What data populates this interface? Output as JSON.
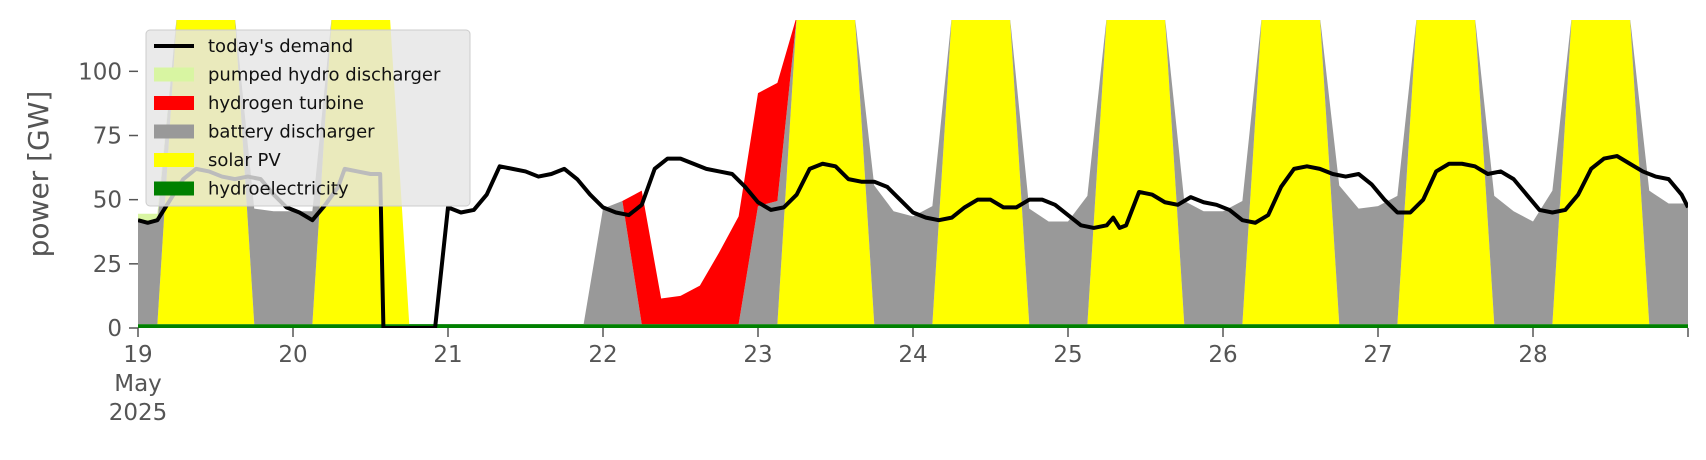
{
  "chart_data": {
    "type": "area",
    "ylabel": "power [GW]",
    "ylim": [
      0,
      120
    ],
    "xlim": [
      "2025-05-19T00:00",
      "2025-05-29T00:00"
    ],
    "yticks": [
      0,
      25,
      50,
      75,
      100
    ],
    "xticks": [
      {
        "t": "2025-05-19T00:00",
        "lines": [
          "19",
          "May",
          "2025"
        ]
      },
      {
        "t": "2025-05-20T00:00",
        "lines": [
          "20"
        ]
      },
      {
        "t": "2025-05-21T00:00",
        "lines": [
          "21"
        ]
      },
      {
        "t": "2025-05-22T00:00",
        "lines": [
          "22"
        ]
      },
      {
        "t": "2025-05-23T00:00",
        "lines": [
          "23"
        ]
      },
      {
        "t": "2025-05-24T00:00",
        "lines": [
          "24"
        ]
      },
      {
        "t": "2025-05-25T00:00",
        "lines": [
          "25"
        ]
      },
      {
        "t": "2025-05-26T00:00",
        "lines": [
          "26"
        ]
      },
      {
        "t": "2025-05-27T00:00",
        "lines": [
          "27"
        ]
      },
      {
        "t": "2025-05-28T00:00",
        "lines": [
          "28"
        ]
      }
    ],
    "grid": false,
    "legend_position": "top-left",
    "time_step_hours": 3,
    "start": "2025-05-19T00:00",
    "stacked_series": [
      {
        "name": "hydroelectricity",
        "color": "#008000",
        "values": [
          1.5,
          1.5,
          1.5,
          1.5,
          1.5,
          1.5,
          1.5,
          1.5,
          1.5,
          1.5,
          1.5,
          1.5,
          1.5,
          1.5,
          1.5,
          1.5,
          1.5,
          1.5,
          1.5,
          1.5,
          1.5,
          1.5,
          1.5,
          1.5,
          1.5,
          1.5,
          1.5,
          1.5,
          1.5,
          1.5,
          1.5,
          1.5,
          1.5,
          1.5,
          1.5,
          1.5,
          1.5,
          1.5,
          1.5,
          1.5,
          1.5,
          1.5,
          1.5,
          1.5,
          1.5,
          1.5,
          1.5,
          1.5,
          1.5,
          1.5,
          1.5,
          1.5,
          1.5,
          1.5,
          1.5,
          1.5,
          1.5,
          1.5,
          1.5,
          1.5,
          1.5,
          1.5,
          1.5,
          1.5,
          1.5,
          1.5,
          1.5,
          1.5,
          1.5,
          1.5,
          1.5,
          1.5,
          1.5,
          1.5,
          1.5,
          1.5,
          1.5,
          1.5,
          1.5,
          1.5,
          1.5
        ]
      },
      {
        "name": "solar PV",
        "color": "#ffff00",
        "values": [
          0,
          0,
          120,
          120,
          120,
          120,
          0,
          0,
          0,
          0,
          120,
          120,
          120,
          120,
          0,
          0,
          0,
          0,
          0,
          0,
          0,
          0,
          0,
          0,
          0,
          0,
          0,
          0,
          0,
          0,
          0,
          0,
          0,
          0,
          120,
          120,
          120,
          120,
          0,
          0,
          0,
          0,
          120,
          120,
          120,
          120,
          0,
          0,
          0,
          0,
          120,
          120,
          120,
          120,
          0,
          0,
          0,
          0,
          120,
          120,
          120,
          120,
          0,
          0,
          0,
          0,
          120,
          120,
          120,
          120,
          0,
          0,
          0,
          0,
          120,
          120,
          120,
          120,
          0,
          0,
          0
        ]
      },
      {
        "name": "battery discharger",
        "color": "#999999",
        "values": [
          40,
          40,
          0,
          0,
          0,
          0,
          45,
          44,
          44,
          44,
          0,
          0,
          0,
          0,
          0,
          0,
          0,
          0,
          0,
          0,
          0,
          0,
          0,
          0,
          45,
          48,
          0,
          0,
          0,
          0,
          0,
          0,
          46,
          48,
          0,
          0,
          0,
          0,
          54,
          44,
          42,
          46,
          0,
          0,
          0,
          0,
          45,
          40,
          40,
          50,
          0,
          0,
          0,
          0,
          48,
          44,
          44,
          48,
          0,
          0,
          0,
          0,
          54,
          45,
          46,
          50,
          0,
          0,
          0,
          0,
          50,
          44,
          40,
          52,
          0,
          0,
          0,
          0,
          52,
          47,
          47
        ]
      },
      {
        "name": "hydrogen turbine",
        "color": "#ff0000",
        "values": [
          0,
          0,
          0,
          0,
          0,
          0,
          0,
          0,
          0,
          0,
          0,
          0,
          0,
          0,
          0,
          0,
          0,
          0,
          0,
          0,
          0,
          0,
          0,
          0,
          0,
          0,
          52,
          10,
          11,
          15,
          28,
          42,
          44,
          46,
          0,
          0,
          0,
          0,
          0,
          0,
          0,
          0,
          0,
          0,
          0,
          0,
          0,
          0,
          0,
          0,
          0,
          0,
          0,
          0,
          0,
          0,
          0,
          0,
          0,
          0,
          0,
          0,
          0,
          0,
          0,
          0,
          0,
          0,
          0,
          0,
          0,
          0,
          0,
          0,
          0,
          0,
          0,
          0,
          0,
          0,
          0
        ]
      },
      {
        "name": "pumped hydro discharger",
        "color": "#d8f5a2",
        "values": [
          3,
          3,
          0,
          0,
          0,
          0,
          0,
          0,
          0,
          0,
          0,
          0,
          0,
          0,
          0,
          0,
          0,
          0,
          0,
          0,
          0,
          0,
          0,
          0,
          0,
          0,
          0,
          0,
          0,
          0,
          0,
          0,
          0,
          0,
          0,
          0,
          0,
          0,
          0,
          0,
          0,
          0,
          0,
          0,
          0,
          0,
          0,
          0,
          0,
          0,
          0,
          0,
          0,
          0,
          0,
          0,
          0,
          0,
          0,
          0,
          0,
          0,
          0,
          0,
          0,
          0,
          0,
          0,
          0,
          0,
          0,
          0,
          0,
          0,
          0,
          0,
          0,
          0,
          0,
          0,
          0
        ]
      }
    ],
    "line_series": {
      "name": "today's demand",
      "color": "#000000",
      "points": [
        [
          "2025-05-19T00:00",
          42
        ],
        [
          "2025-05-19T01:30",
          41
        ],
        [
          "2025-05-19T03:00",
          42
        ],
        [
          "2025-05-19T05:00",
          50
        ],
        [
          "2025-05-19T07:00",
          58
        ],
        [
          "2025-05-19T09:00",
          62
        ],
        [
          "2025-05-19T11:00",
          61
        ],
        [
          "2025-05-19T13:00",
          59
        ],
        [
          "2025-05-19T15:00",
          58
        ],
        [
          "2025-05-19T17:00",
          59
        ],
        [
          "2025-05-19T19:00",
          58
        ],
        [
          "2025-05-19T21:00",
          52
        ],
        [
          "2025-05-19T23:00",
          47
        ],
        [
          "2025-05-20T01:00",
          45
        ],
        [
          "2025-05-20T03:00",
          42
        ],
        [
          "2025-05-20T05:00",
          48
        ],
        [
          "2025-05-20T07:00",
          55
        ],
        [
          "2025-05-20T08:00",
          62
        ],
        [
          "2025-05-20T10:00",
          61
        ],
        [
          "2025-05-20T12:00",
          60
        ],
        [
          "2025-05-20T13:30",
          60
        ],
        [
          "2025-05-20T14:00",
          0
        ],
        [
          "2025-05-20T22:00",
          0
        ],
        [
          "2025-05-21T00:00",
          47
        ],
        [
          "2025-05-21T02:00",
          45
        ],
        [
          "2025-05-21T04:00",
          46
        ],
        [
          "2025-05-21T06:00",
          52
        ],
        [
          "2025-05-21T08:00",
          63
        ],
        [
          "2025-05-21T10:00",
          62
        ],
        [
          "2025-05-21T12:00",
          61
        ],
        [
          "2025-05-21T14:00",
          59
        ],
        [
          "2025-05-21T16:00",
          60
        ],
        [
          "2025-05-21T18:00",
          62
        ],
        [
          "2025-05-21T20:00",
          58
        ],
        [
          "2025-05-21T22:00",
          52
        ],
        [
          "2025-05-22T00:00",
          47
        ],
        [
          "2025-05-22T02:00",
          45
        ],
        [
          "2025-05-22T04:00",
          44
        ],
        [
          "2025-05-22T06:00",
          48
        ],
        [
          "2025-05-22T08:00",
          62
        ],
        [
          "2025-05-22T10:00",
          66
        ],
        [
          "2025-05-22T12:00",
          66
        ],
        [
          "2025-05-22T14:00",
          64
        ],
        [
          "2025-05-22T16:00",
          62
        ],
        [
          "2025-05-22T18:00",
          61
        ],
        [
          "2025-05-22T20:00",
          60
        ],
        [
          "2025-05-22T22:00",
          55
        ],
        [
          "2025-05-23T00:00",
          49
        ],
        [
          "2025-05-23T02:00",
          46
        ],
        [
          "2025-05-23T04:00",
          47
        ],
        [
          "2025-05-23T06:00",
          52
        ],
        [
          "2025-05-23T08:00",
          62
        ],
        [
          "2025-05-23T10:00",
          64
        ],
        [
          "2025-05-23T12:00",
          63
        ],
        [
          "2025-05-23T14:00",
          58
        ],
        [
          "2025-05-23T16:00",
          57
        ],
        [
          "2025-05-23T18:00",
          57
        ],
        [
          "2025-05-23T20:00",
          55
        ],
        [
          "2025-05-23T22:00",
          50
        ],
        [
          "2025-05-24T00:00",
          45
        ],
        [
          "2025-05-24T02:00",
          43
        ],
        [
          "2025-05-24T04:00",
          42
        ],
        [
          "2025-05-24T06:00",
          43
        ],
        [
          "2025-05-24T08:00",
          47
        ],
        [
          "2025-05-24T10:00",
          50
        ],
        [
          "2025-05-24T12:00",
          50
        ],
        [
          "2025-05-24T14:00",
          47
        ],
        [
          "2025-05-24T16:00",
          47
        ],
        [
          "2025-05-24T18:00",
          50
        ],
        [
          "2025-05-24T20:00",
          50
        ],
        [
          "2025-05-24T22:00",
          48
        ],
        [
          "2025-05-25T00:00",
          44
        ],
        [
          "2025-05-25T02:00",
          40
        ],
        [
          "2025-05-25T04:00",
          39
        ],
        [
          "2025-05-25T06:00",
          40
        ],
        [
          "2025-05-25T07:00",
          43
        ],
        [
          "2025-05-25T08:00",
          39
        ],
        [
          "2025-05-25T09:00",
          40
        ],
        [
          "2025-05-25T11:00",
          53
        ],
        [
          "2025-05-25T13:00",
          52
        ],
        [
          "2025-05-25T15:00",
          49
        ],
        [
          "2025-05-25T17:00",
          48
        ],
        [
          "2025-05-25T19:00",
          51
        ],
        [
          "2025-05-25T21:00",
          49
        ],
        [
          "2025-05-25T23:00",
          48
        ],
        [
          "2025-05-26T01:00",
          46
        ],
        [
          "2025-05-26T03:00",
          42
        ],
        [
          "2025-05-26T05:00",
          41
        ],
        [
          "2025-05-26T07:00",
          44
        ],
        [
          "2025-05-26T09:00",
          55
        ],
        [
          "2025-05-26T11:00",
          62
        ],
        [
          "2025-05-26T13:00",
          63
        ],
        [
          "2025-05-26T15:00",
          62
        ],
        [
          "2025-05-26T17:00",
          60
        ],
        [
          "2025-05-26T19:00",
          59
        ],
        [
          "2025-05-26T21:00",
          60
        ],
        [
          "2025-05-26T23:00",
          56
        ],
        [
          "2025-05-27T01:00",
          50
        ],
        [
          "2025-05-27T03:00",
          45
        ],
        [
          "2025-05-27T05:00",
          45
        ],
        [
          "2025-05-27T07:00",
          50
        ],
        [
          "2025-05-27T09:00",
          61
        ],
        [
          "2025-05-27T11:00",
          64
        ],
        [
          "2025-05-27T13:00",
          64
        ],
        [
          "2025-05-27T15:00",
          63
        ],
        [
          "2025-05-27T17:00",
          60
        ],
        [
          "2025-05-27T19:00",
          61
        ],
        [
          "2025-05-27T21:00",
          58
        ],
        [
          "2025-05-27T23:00",
          52
        ],
        [
          "2025-05-28T01:00",
          46
        ],
        [
          "2025-05-28T03:00",
          45
        ],
        [
          "2025-05-28T05:00",
          46
        ],
        [
          "2025-05-28T07:00",
          52
        ],
        [
          "2025-05-28T09:00",
          62
        ],
        [
          "2025-05-28T11:00",
          66
        ],
        [
          "2025-05-28T13:00",
          67
        ],
        [
          "2025-05-28T15:00",
          64
        ],
        [
          "2025-05-28T17:00",
          61
        ],
        [
          "2025-05-28T19:00",
          59
        ],
        [
          "2025-05-28T21:00",
          58
        ],
        [
          "2025-05-28T23:00",
          52
        ],
        [
          "2025-05-29T00:00",
          47
        ]
      ]
    },
    "legend": [
      {
        "label": "today's demand",
        "color": "#000000",
        "kind": "line"
      },
      {
        "label": "pumped hydro discharger",
        "color": "#d8f5a2",
        "kind": "patch"
      },
      {
        "label": "hydrogen turbine",
        "color": "#ff0000",
        "kind": "patch"
      },
      {
        "label": "battery discharger",
        "color": "#999999",
        "kind": "patch"
      },
      {
        "label": "solar PV",
        "color": "#ffff00",
        "kind": "patch"
      },
      {
        "label": "hydroelectricity",
        "color": "#008000",
        "kind": "patch"
      }
    ]
  }
}
